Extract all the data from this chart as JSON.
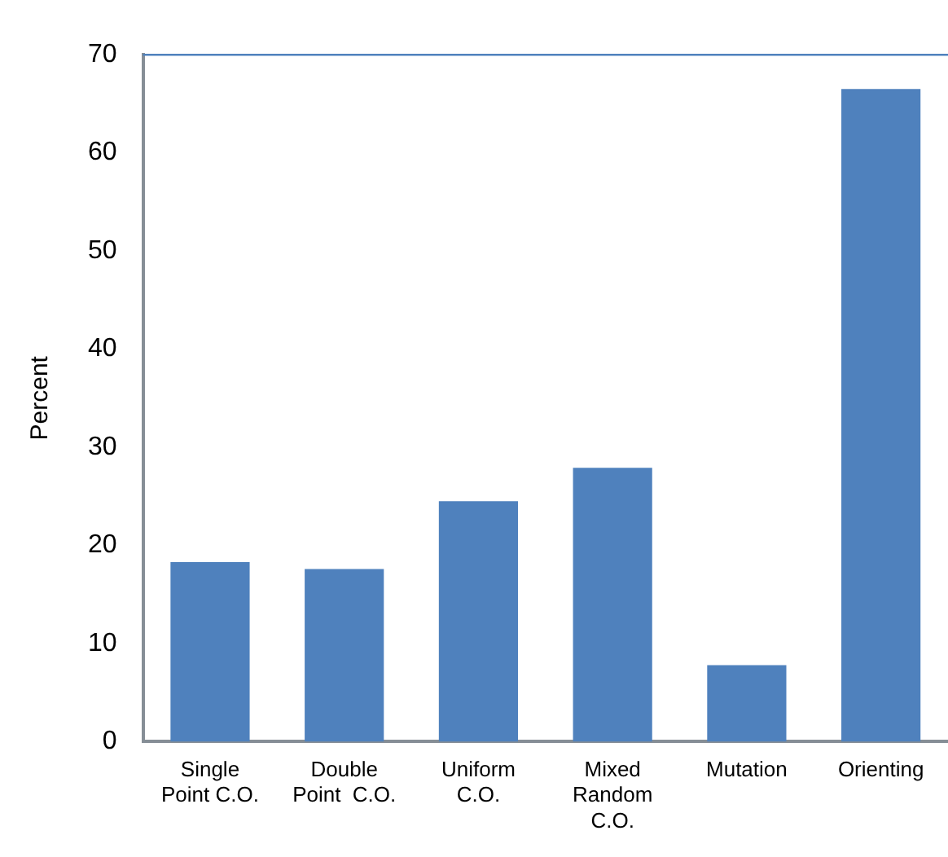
{
  "chart_data": {
    "type": "bar",
    "ylabel": "Percent",
    "categories": [
      "Single Point C.O.",
      "Double Point  C.O.",
      "Uniform C.O.",
      "Mixed Random C.O.",
      "Mutation",
      "Orienting"
    ],
    "values": [
      18.3,
      17.6,
      24.5,
      27.9,
      7.8,
      66.5
    ],
    "color": "#4f81bd",
    "ylim": [
      0,
      70
    ],
    "yticks": [
      0,
      10,
      20,
      30,
      40,
      50,
      60,
      70
    ],
    "grid": false,
    "legend": false
  }
}
